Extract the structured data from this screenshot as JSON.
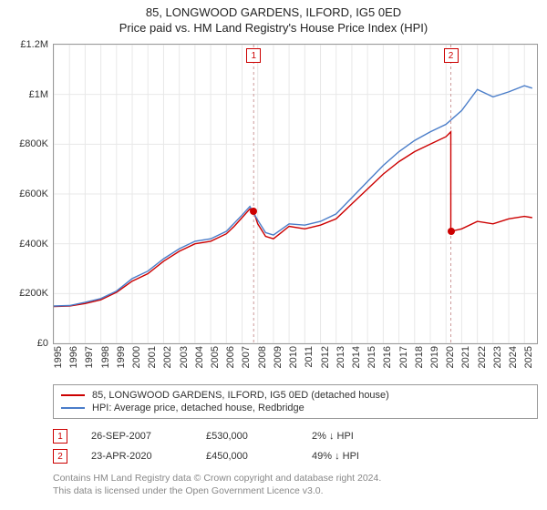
{
  "title_line1": "85, LONGWOOD GARDENS, ILFORD, IG5 0ED",
  "title_line2": "Price paid vs. HM Land Registry's House Price Index (HPI)",
  "chart": {
    "type": "line",
    "background_color": "#ffffff",
    "grid_color": "#e8e8e8",
    "border_color": "#999999",
    "x": {
      "min": 1995,
      "max": 2025.8,
      "ticks": [
        1995,
        1996,
        1997,
        1998,
        1999,
        2000,
        2001,
        2002,
        2003,
        2004,
        2005,
        2006,
        2007,
        2008,
        2009,
        2010,
        2011,
        2012,
        2013,
        2014,
        2015,
        2016,
        2017,
        2018,
        2019,
        2020,
        2021,
        2022,
        2023,
        2024,
        2025
      ],
      "label_fontsize": 11,
      "label_rotation_deg": -90
    },
    "y": {
      "min": 0,
      "max": 1200000,
      "ticks": [
        0,
        200000,
        400000,
        600000,
        800000,
        1000000,
        1200000
      ],
      "tick_labels": [
        "£0",
        "£200K",
        "£400K",
        "£600K",
        "£800K",
        "£1M",
        "£1.2M"
      ],
      "label_fontsize": 11
    },
    "series": [
      {
        "id": "property",
        "label": "85, LONGWOOD GARDENS, ILFORD, IG5 0ED (detached house)",
        "color": "#cc0000",
        "line_width": 1.4,
        "x": [
          1995,
          1996,
          1997,
          1998,
          1999,
          2000,
          2001,
          2002,
          2003,
          2004,
          2005,
          2006,
          2006.5,
          2007,
          2007.5,
          2007.74,
          2008,
          2008.5,
          2009,
          2009.5,
          2010,
          2011,
          2012,
          2013,
          2014,
          2015,
          2016,
          2017,
          2018,
          2019,
          2020,
          2020.31,
          2020.31,
          2021,
          2022,
          2023,
          2024,
          2025,
          2025.5
        ],
        "y": [
          148000,
          150000,
          160000,
          175000,
          205000,
          250000,
          280000,
          330000,
          370000,
          400000,
          410000,
          440000,
          470000,
          505000,
          540000,
          530000,
          480000,
          430000,
          420000,
          445000,
          470000,
          460000,
          475000,
          500000,
          560000,
          620000,
          680000,
          730000,
          770000,
          800000,
          830000,
          850000,
          450000,
          460000,
          490000,
          480000,
          500000,
          510000,
          505000
        ]
      },
      {
        "id": "hpi",
        "label": "HPI: Average price, detached house, Redbridge",
        "color": "#4a7dc9",
        "line_width": 1.4,
        "x": [
          1995,
          1996,
          1997,
          1998,
          1999,
          2000,
          2001,
          2002,
          2003,
          2004,
          2005,
          2006,
          2007,
          2007.5,
          2008,
          2008.5,
          2009,
          2010,
          2011,
          2012,
          2013,
          2014,
          2015,
          2016,
          2017,
          2018,
          2019,
          2020,
          2021,
          2022,
          2023,
          2024,
          2025,
          2025.5
        ],
        "y": [
          150000,
          152000,
          165000,
          180000,
          210000,
          260000,
          290000,
          340000,
          380000,
          410000,
          420000,
          450000,
          515000,
          550000,
          495000,
          445000,
          435000,
          480000,
          475000,
          490000,
          520000,
          585000,
          650000,
          715000,
          770000,
          815000,
          850000,
          880000,
          935000,
          1020000,
          990000,
          1010000,
          1035000,
          1025000
        ]
      }
    ],
    "sale_markers": [
      {
        "n": 1,
        "x": 2007.74,
        "y": 530000,
        "line_color": "#cc9999",
        "dot_color": "#cc0000"
      },
      {
        "n": 2,
        "x": 2020.31,
        "y": 450000,
        "line_color": "#cc9999",
        "dot_color": "#cc0000"
      }
    ]
  },
  "legend": {
    "border_color": "#999999",
    "items": [
      {
        "color": "#cc0000",
        "label": "85, LONGWOOD GARDENS, ILFORD, IG5 0ED (detached house)"
      },
      {
        "color": "#4a7dc9",
        "label": "HPI: Average price, detached house, Redbridge"
      }
    ]
  },
  "sales": [
    {
      "n": "1",
      "date": "26-SEP-2007",
      "price": "£530,000",
      "hpi": "2%  ↓  HPI"
    },
    {
      "n": "2",
      "date": "23-APR-2020",
      "price": "£450,000",
      "hpi": "49%  ↓  HPI"
    }
  ],
  "sale_box_color": "#cc0000",
  "footer_line1": "Contains HM Land Registry data © Crown copyright and database right 2024.",
  "footer_line2": "This data is licensed under the Open Government Licence v3.0.",
  "footer_color": "#888888"
}
